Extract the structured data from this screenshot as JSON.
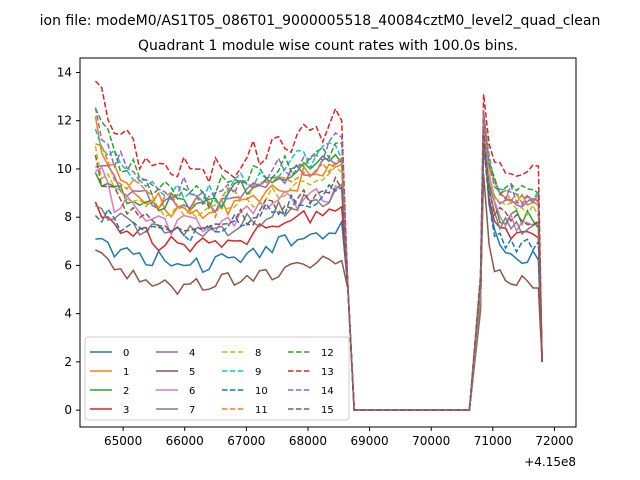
{
  "chart_data": {
    "type": "line",
    "suptitle": "ion file: modeM0/AS1T05_086T01_9000005518_40084cztM0_level2_quad_clean",
    "title": "Quadrant 1 module wise count rates with 100.0s bins.",
    "xlabel": "",
    "ylabel": "",
    "offset_text": "+4.15e8",
    "xlim": [
      64300,
      72350
    ],
    "ylim": [
      -0.7,
      14.6
    ],
    "xticks": [
      65000,
      66000,
      67000,
      68000,
      69000,
      70000,
      71000,
      72000
    ],
    "xtick_labels": [
      "65000",
      "66000",
      "67000",
      "68000",
      "69000",
      "70000",
      "71000",
      "72000"
    ],
    "yticks": [
      0,
      2,
      4,
      6,
      8,
      10,
      12,
      14
    ],
    "ytick_labels": [
      "0",
      "2",
      "4",
      "6",
      "8",
      "10",
      "12",
      "14"
    ],
    "grid": false,
    "legend_position": "lower-left",
    "legend_columns": 4,
    "series": [
      {
        "name": "0",
        "color": "#1f77b4",
        "dash": "solid",
        "base": 6.1,
        "start": 7.2,
        "end": 6.3,
        "peak2": 11.8,
        "amp": 0.3,
        "seed": 1
      },
      {
        "name": "1",
        "color": "#ff7f0e",
        "dash": "solid",
        "base": 8.2,
        "start": 11.7,
        "end": 8.8,
        "peak2": 12.1,
        "amp": 0.35,
        "seed": 2
      },
      {
        "name": "2",
        "color": "#2ca02c",
        "dash": "solid",
        "base": 8.6,
        "start": 9.6,
        "end": 7.9,
        "peak2": 11.9,
        "amp": 0.4,
        "seed": 3
      },
      {
        "name": "3",
        "color": "#d62728",
        "dash": "solid",
        "base": 6.8,
        "start": 8.7,
        "end": 7.2,
        "peak2": 11.4,
        "amp": 0.3,
        "seed": 4
      },
      {
        "name": "4",
        "color": "#9467bd",
        "dash": "solid",
        "base": 8.5,
        "start": 10.3,
        "end": 8.5,
        "peak2": 12.0,
        "amp": 0.35,
        "seed": 5
      },
      {
        "name": "5",
        "color": "#8c564b",
        "dash": "solid",
        "base": 5.1,
        "start": 6.8,
        "end": 5.3,
        "peak2": 9.8,
        "amp": 0.3,
        "seed": 6
      },
      {
        "name": "6",
        "color": "#e377c2",
        "dash": "solid",
        "base": 7.6,
        "start": 10.0,
        "end": 7.8,
        "peak2": 11.6,
        "amp": 0.4,
        "seed": 7
      },
      {
        "name": "7",
        "color": "#7f7f7f",
        "dash": "solid",
        "base": 7.3,
        "start": 8.6,
        "end": 7.6,
        "peak2": 10.8,
        "amp": 0.35,
        "seed": 8
      },
      {
        "name": "8",
        "color": "#bcbd22",
        "dash": "dashed",
        "base": 8.0,
        "start": 10.6,
        "end": 8.3,
        "peak2": 11.7,
        "amp": 0.35,
        "seed": 9
      },
      {
        "name": "9",
        "color": "#17becf",
        "dash": "dashed",
        "base": 8.8,
        "start": 11.6,
        "end": 9.1,
        "peak2": 12.3,
        "amp": 0.4,
        "seed": 10
      },
      {
        "name": "10",
        "color": "#1f77b4",
        "dash": "dashed",
        "base": 7.4,
        "start": 8.2,
        "end": 6.8,
        "peak2": 11.0,
        "amp": 0.3,
        "seed": 11
      },
      {
        "name": "11",
        "color": "#ff7f0e",
        "dash": "dashed",
        "base": 8.4,
        "start": 11.2,
        "end": 8.7,
        "peak2": 12.4,
        "amp": 0.35,
        "seed": 12
      },
      {
        "name": "12",
        "color": "#2ca02c",
        "dash": "dashed",
        "base": 8.9,
        "start": 12.6,
        "end": 9.0,
        "peak2": 12.2,
        "amp": 0.4,
        "seed": 13
      },
      {
        "name": "13",
        "color": "#d62728",
        "dash": "dashed",
        "base": 9.8,
        "start": 13.7,
        "end": 9.8,
        "peak2": 13.1,
        "amp": 0.45,
        "seed": 14
      },
      {
        "name": "14",
        "color": "#9467bd",
        "dash": "dashed",
        "base": 8.9,
        "start": 12.0,
        "end": 8.9,
        "peak2": 12.4,
        "amp": 0.4,
        "seed": 15
      },
      {
        "name": "15",
        "color": "#8c564b",
        "dash": "dashed",
        "base": 7.5,
        "start": 10.4,
        "end": 7.8,
        "peak2": 11.6,
        "amp": 0.35,
        "seed": 16
      }
    ],
    "segments": {
      "active1": [
        64550,
        68650
      ],
      "drop_to": 68750,
      "zero_until": 70620,
      "rise_at": 70800,
      "peak_at": 70850,
      "active2_end": 71800
    }
  }
}
